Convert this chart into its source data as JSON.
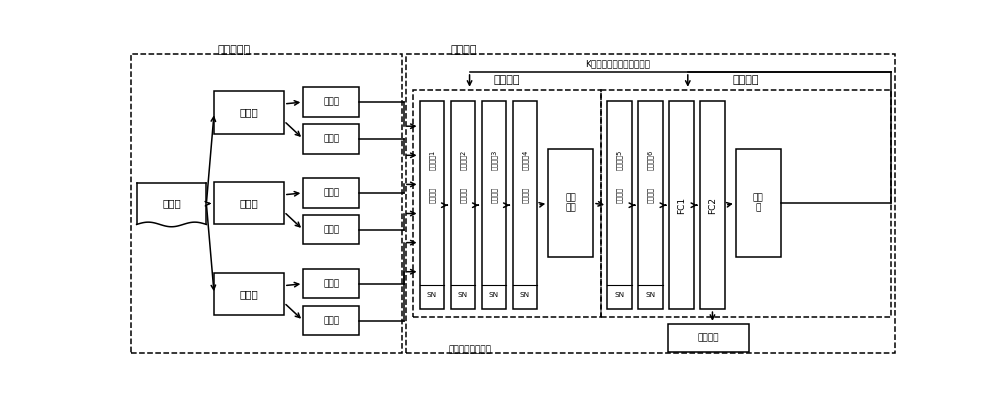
{
  "fig_w": 10.0,
  "fig_h": 4.01,
  "lw": 1.1,
  "texts": {
    "shuju_yuchuli": "数据预处理",
    "xunlian_wangluo": "训练网络",
    "K_iter": "K次迭代反向调节网络权值",
    "tezheng_bianma": "特征编码",
    "guanxi_bianma": "关系编码",
    "shuju_ji": "数据集",
    "xunlian_ji": "训练集",
    "yanzheng_ji": "验证集",
    "ceshi_ji": "测试集",
    "yanben": "样本集",
    "chaxun": "查询集",
    "tezheng_zuhe": "特征\n组合",
    "sunshi_zhi": "损失\n值",
    "fenlei_defen": "分类得分",
    "ceshi_jieguo": "测试网络分类结果",
    "conv_prefix": "卷积池化滤波层次",
    "SN": "SN",
    "FC1": "FC1",
    "FC2": "FC2"
  },
  "colors": {
    "bg": "#ffffff",
    "box_edge": "#000000",
    "box_face": "#ffffff",
    "arrow": "#000000"
  }
}
